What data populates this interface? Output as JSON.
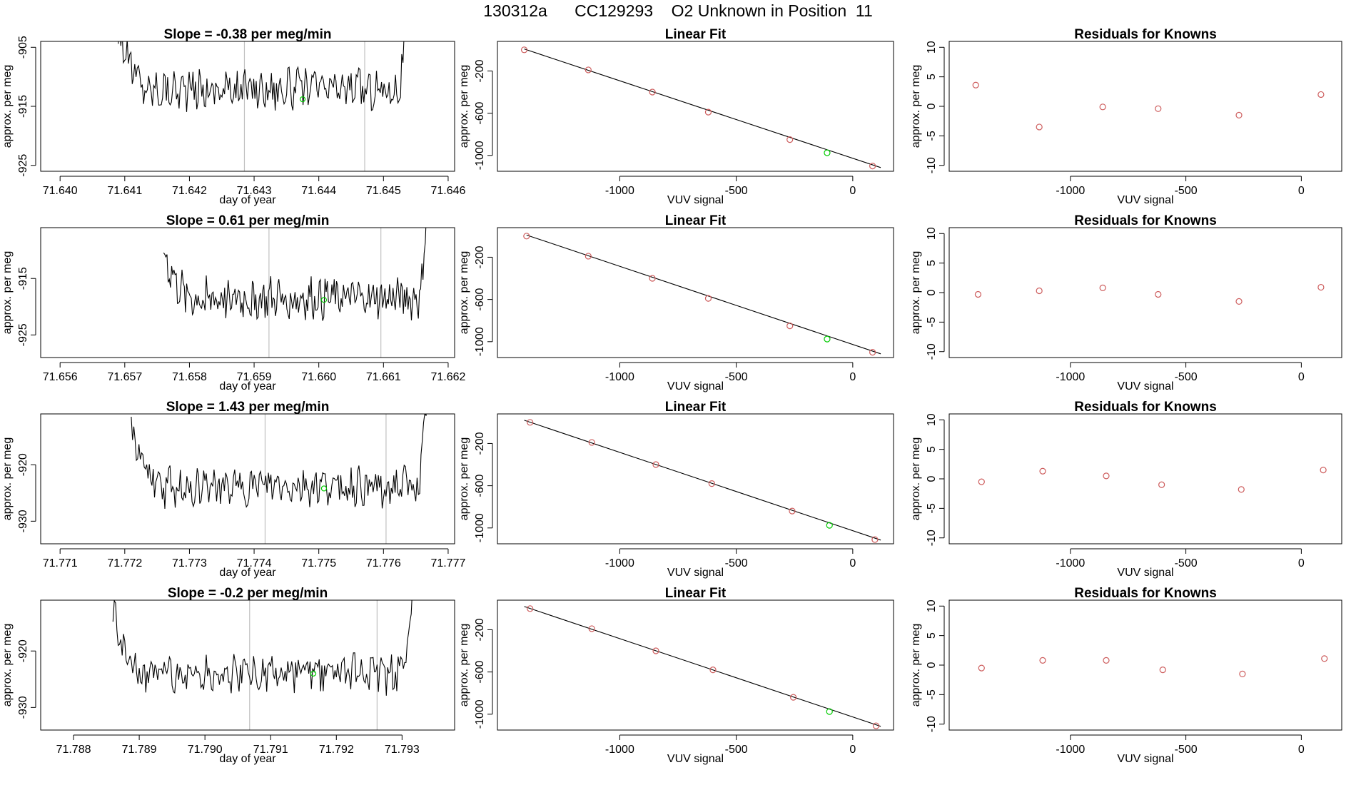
{
  "page": {
    "title": "130312a      CC129293    O2 Unknown in Position  11"
  },
  "colors": {
    "line": "#000000",
    "frame": "#000000",
    "vline": "#c0c0c0",
    "known_point": "#cd5c5c",
    "unknown_point": "#00cc00"
  },
  "chart_data": [
    {
      "panel": "timeseries",
      "row": 0,
      "type": "line",
      "title": "Slope =  -0.38  per meg/min",
      "xlabel": "day of year",
      "ylabel": "approx. per meg",
      "xlim": [
        71.6397,
        71.6461
      ],
      "ylim": [
        -926,
        -904
      ],
      "xticks": [
        71.64,
        71.641,
        71.642,
        71.643,
        71.644,
        71.645,
        71.646
      ],
      "xtick_labels": [
        "71.640",
        "71.641",
        "71.642",
        "71.643",
        "71.644",
        "71.645",
        "71.646"
      ],
      "yticks": [
        -905,
        -915,
        -925
      ],
      "ytick_labels": [
        "-905",
        "-915",
        "-925"
      ],
      "xstart": 71.6409,
      "xend": 71.6454,
      "base": -912.0,
      "noise": 1.8,
      "rise_left": 10,
      "rise_right": 14,
      "vlines": [
        71.64285,
        71.64471
      ],
      "marker": {
        "x": 71.64375,
        "y": -913.8
      }
    },
    {
      "panel": "linear_fit",
      "row": 0,
      "type": "scatter",
      "title": "Linear Fit",
      "xlabel": "VUV signal",
      "ylabel": "approx. per meg",
      "xlim": [
        -1525,
        175
      ],
      "ylim": [
        -1150,
        80
      ],
      "xticks": [
        -1000,
        -500,
        0
      ],
      "xtick_labels": [
        "-1000",
        "-500",
        "0"
      ],
      "yticks": [
        -200,
        -600,
        -1000
      ],
      "ytick_labels": [
        "-200",
        "-600",
        "-1000"
      ],
      "fit": {
        "x0": -1410,
        "y0": 8,
        "x1": 120,
        "y1": -1115
      },
      "knowns": [
        [
          -1410,
          0
        ],
        [
          -1135,
          -190
        ],
        [
          -860,
          -400
        ],
        [
          -620,
          -590
        ],
        [
          -270,
          -850
        ],
        [
          85,
          -1100
        ]
      ],
      "unknown": [
        -110,
        -975
      ]
    },
    {
      "panel": "residuals",
      "row": 0,
      "type": "scatter",
      "title": "Residuals for Knowns",
      "xlabel": "VUV signal",
      "ylabel": "approx. per meg",
      "xlim": [
        -1525,
        175
      ],
      "ylim": [
        -11,
        11
      ],
      "xticks": [
        -1000,
        -500,
        0
      ],
      "xtick_labels": [
        "-1000",
        "-500",
        "0"
      ],
      "yticks": [
        10,
        5,
        0,
        -5,
        -10
      ],
      "ytick_labels": [
        "10",
        "5",
        "0",
        "-5",
        "-10"
      ],
      "points": [
        [
          -1410,
          3.6
        ],
        [
          -1135,
          -3.5
        ],
        [
          -860,
          -0.1
        ],
        [
          -620,
          -0.4
        ],
        [
          -270,
          -1.5
        ],
        [
          85,
          2.0
        ]
      ]
    },
    {
      "panel": "timeseries",
      "row": 1,
      "type": "line",
      "title": "Slope =  0.61  per meg/min",
      "xlabel": "day of year",
      "ylabel": "approx. per meg",
      "xlim": [
        71.6557,
        71.6621
      ],
      "ylim": [
        -929,
        -906
      ],
      "xticks": [
        71.656,
        71.657,
        71.658,
        71.659,
        71.66,
        71.661,
        71.662
      ],
      "xtick_labels": [
        "71.656",
        "71.657",
        "71.658",
        "71.659",
        "71.660",
        "71.661",
        "71.662"
      ],
      "yticks": [
        -915,
        -925
      ],
      "ytick_labels": [
        "-915",
        "-925"
      ],
      "xstart": 71.6576,
      "xend": 71.6617,
      "base": -918.5,
      "noise": 2.0,
      "rise_left": 8,
      "rise_right": 14,
      "vlines": [
        71.65923,
        71.66096
      ],
      "marker": {
        "x": 71.66008,
        "y": -918.8
      }
    },
    {
      "panel": "linear_fit",
      "row": 1,
      "type": "scatter",
      "title": "Linear Fit",
      "xlabel": "VUV signal",
      "ylabel": "approx. per meg",
      "xlim": [
        -1525,
        175
      ],
      "ylim": [
        -1150,
        80
      ],
      "xticks": [
        -1000,
        -500,
        0
      ],
      "xtick_labels": [
        "-1000",
        "-500",
        "0"
      ],
      "yticks": [
        -200,
        -600,
        -1000
      ],
      "ytick_labels": [
        "-200",
        "-600",
        "-1000"
      ],
      "fit": {
        "x0": -1400,
        "y0": 10,
        "x1": 120,
        "y1": -1115
      },
      "knowns": [
        [
          -1400,
          0
        ],
        [
          -1135,
          -190
        ],
        [
          -860,
          -400
        ],
        [
          -620,
          -590
        ],
        [
          -270,
          -850
        ],
        [
          85,
          -1100
        ]
      ],
      "unknown": [
        -110,
        -975
      ]
    },
    {
      "panel": "residuals",
      "row": 1,
      "type": "scatter",
      "title": "Residuals for Knowns",
      "xlabel": "VUV signal",
      "ylabel": "approx. per meg",
      "xlim": [
        -1525,
        175
      ],
      "ylim": [
        -11,
        11
      ],
      "xticks": [
        -1000,
        -500,
        0
      ],
      "xtick_labels": [
        "-1000",
        "-500",
        "0"
      ],
      "yticks": [
        10,
        5,
        0,
        -5,
        -10
      ],
      "ytick_labels": [
        "10",
        "5",
        "0",
        "-5",
        "-10"
      ],
      "points": [
        [
          -1400,
          -0.3
        ],
        [
          -1135,
          0.3
        ],
        [
          -860,
          0.8
        ],
        [
          -620,
          -0.3
        ],
        [
          -270,
          -1.5
        ],
        [
          85,
          0.9
        ]
      ]
    },
    {
      "panel": "timeseries",
      "row": 2,
      "type": "line",
      "title": "Slope =  1.43  per meg/min",
      "xlabel": "day of year",
      "ylabel": "approx. per meg",
      "xlim": [
        71.7707,
        71.7771
      ],
      "ylim": [
        -934,
        -911
      ],
      "xticks": [
        71.771,
        71.772,
        71.773,
        71.774,
        71.775,
        71.776,
        71.777
      ],
      "xtick_labels": [
        "71.771",
        "71.772",
        "71.773",
        "71.774",
        "71.775",
        "71.776",
        "71.777"
      ],
      "yticks": [
        -920,
        -930
      ],
      "ytick_labels": [
        "-920",
        "-930"
      ],
      "xstart": 71.7721,
      "xend": 71.7767,
      "base": -924.0,
      "noise": 1.8,
      "rise_left": 10,
      "rise_right": 14,
      "vlines": [
        71.77417,
        71.77604
      ],
      "marker": {
        "x": 71.77508,
        "y": -924.2
      }
    },
    {
      "panel": "linear_fit",
      "row": 2,
      "type": "scatter",
      "title": "Linear Fit",
      "xlabel": "VUV signal",
      "ylabel": "approx. per meg",
      "xlim": [
        -1525,
        175
      ],
      "ylim": [
        -1150,
        80
      ],
      "xticks": [
        -1000,
        -500,
        0
      ],
      "xtick_labels": [
        "-1000",
        "-500",
        "0"
      ],
      "yticks": [
        -200,
        -600,
        -1000
      ],
      "ytick_labels": [
        "-200",
        "-600",
        "-1000"
      ],
      "fit": {
        "x0": -1410,
        "y0": 20,
        "x1": 120,
        "y1": -1115
      },
      "knowns": [
        [
          -1385,
          0
        ],
        [
          -1120,
          -190
        ],
        [
          -845,
          -400
        ],
        [
          -605,
          -580
        ],
        [
          -260,
          -840
        ],
        [
          95,
          -1110
        ]
      ],
      "unknown": [
        -100,
        -975
      ]
    },
    {
      "panel": "residuals",
      "row": 2,
      "type": "scatter",
      "title": "Residuals for Knowns",
      "xlabel": "VUV signal",
      "ylabel": "approx. per meg",
      "xlim": [
        -1525,
        175
      ],
      "ylim": [
        -11,
        11
      ],
      "xticks": [
        -1000,
        -500,
        0
      ],
      "xtick_labels": [
        "-1000",
        "-500",
        "0"
      ],
      "yticks": [
        10,
        5,
        0,
        -5,
        -10
      ],
      "ytick_labels": [
        "10",
        "5",
        "0",
        "-5",
        "-10"
      ],
      "points": [
        [
          -1385,
          -0.5
        ],
        [
          -1120,
          1.3
        ],
        [
          -845,
          0.5
        ],
        [
          -605,
          -1.0
        ],
        [
          -260,
          -1.8
        ],
        [
          95,
          1.5
        ]
      ]
    },
    {
      "panel": "timeseries",
      "row": 3,
      "type": "line",
      "title": "Slope =  -0.2  per meg/min",
      "xlabel": "day of year",
      "ylabel": "approx. per meg",
      "xlim": [
        71.7875,
        71.7938
      ],
      "ylim": [
        -934,
        -911
      ],
      "xticks": [
        71.788,
        71.789,
        71.79,
        71.791,
        71.792,
        71.793
      ],
      "xtick_labels": [
        "71.788",
        "71.789",
        "71.790",
        "71.791",
        "71.792",
        "71.793"
      ],
      "yticks": [
        -920,
        -930
      ],
      "ytick_labels": [
        "-920",
        "-930"
      ],
      "xstart": 71.7886,
      "xend": 71.7932,
      "base": -924.0,
      "noise": 1.8,
      "rise_left": 10,
      "rise_right": 14,
      "vlines": [
        71.79068,
        71.79262
      ],
      "marker": {
        "x": 71.79165,
        "y": -924.0
      }
    },
    {
      "panel": "linear_fit",
      "row": 3,
      "type": "scatter",
      "title": "Linear Fit",
      "xlabel": "VUV signal",
      "ylabel": "approx. per meg",
      "xlim": [
        -1525,
        175
      ],
      "ylim": [
        -1150,
        80
      ],
      "xticks": [
        -1000,
        -500,
        0
      ],
      "xtick_labels": [
        "-1000",
        "-500",
        "0"
      ],
      "yticks": [
        -200,
        -600,
        -1000
      ],
      "ytick_labels": [
        "-200",
        "-600",
        "-1000"
      ],
      "fit": {
        "x0": -1410,
        "y0": 20,
        "x1": 120,
        "y1": -1115
      },
      "knowns": [
        [
          -1385,
          0
        ],
        [
          -1120,
          -190
        ],
        [
          -845,
          -400
        ],
        [
          -600,
          -580
        ],
        [
          -255,
          -840
        ],
        [
          100,
          -1110
        ]
      ],
      "unknown": [
        -100,
        -975
      ]
    },
    {
      "panel": "residuals",
      "row": 3,
      "type": "scatter",
      "title": "Residuals for Knowns",
      "xlabel": "VUV signal",
      "ylabel": "approx. per meg",
      "xlim": [
        -1525,
        175
      ],
      "ylim": [
        -11,
        11
      ],
      "xticks": [
        -1000,
        -500,
        0
      ],
      "xtick_labels": [
        "-1000",
        "-500",
        "0"
      ],
      "yticks": [
        10,
        5,
        0,
        -5,
        -10
      ],
      "ytick_labels": [
        "10",
        "5",
        "0",
        "-5",
        "-10"
      ],
      "points": [
        [
          -1385,
          -0.5
        ],
        [
          -1120,
          0.8
        ],
        [
          -845,
          0.8
        ],
        [
          -600,
          -0.8
        ],
        [
          -255,
          -1.5
        ],
        [
          100,
          1.1
        ]
      ]
    }
  ]
}
